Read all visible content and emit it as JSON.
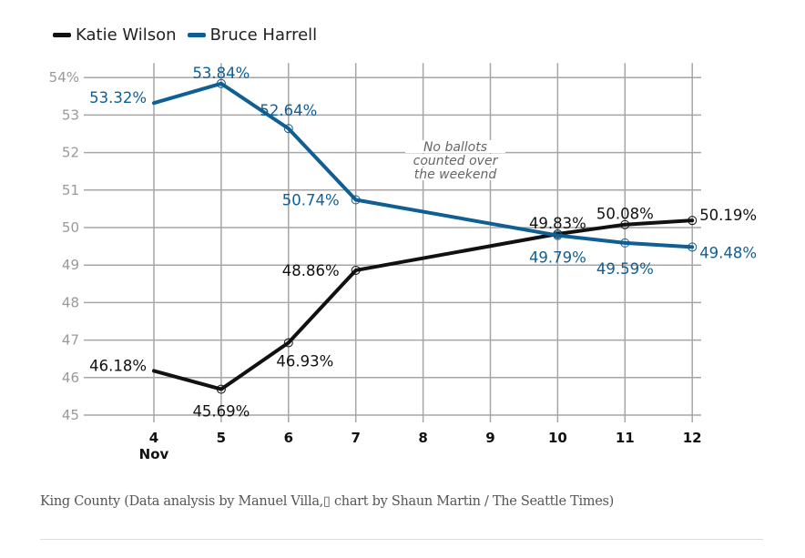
{
  "chart_data": {
    "type": "line",
    "title": "",
    "xlabel": "",
    "ylabel": "",
    "x": [
      4,
      5,
      6,
      7,
      8,
      9,
      10,
      11,
      12
    ],
    "x_tick_labels": [
      "4",
      "5",
      "6",
      "7",
      "8",
      "9",
      "10",
      "11",
      "12"
    ],
    "x_sublabel": "Nov",
    "ylim": [
      45,
      54
    ],
    "y_ticks": [
      45,
      46,
      47,
      48,
      49,
      50,
      51,
      52,
      53,
      54
    ],
    "y_tick_labels": [
      "45",
      "46",
      "47",
      "48",
      "49",
      "50",
      "51",
      "52",
      "53",
      "54%"
    ],
    "grid": true,
    "legend_position": "top-left",
    "series": [
      {
        "name": "Katie Wilson",
        "color": "#111111",
        "points": [
          [
            4,
            46.18
          ],
          [
            5,
            45.69
          ],
          [
            6,
            46.93
          ],
          [
            7,
            48.86
          ],
          [
            10,
            49.83
          ],
          [
            11,
            50.08
          ],
          [
            12,
            50.19
          ]
        ],
        "labels": [
          "46.18%",
          "45.69%",
          "46.93%",
          "48.86%",
          "49.83%",
          "50.08%",
          "50.19%"
        ]
      },
      {
        "name": "Bruce Harrell",
        "color": "#0f5e94",
        "points": [
          [
            4,
            53.32
          ],
          [
            5,
            53.84
          ],
          [
            6,
            52.64
          ],
          [
            7,
            50.74
          ],
          [
            10,
            49.79
          ],
          [
            11,
            49.59
          ],
          [
            12,
            49.48
          ]
        ],
        "labels": [
          "53.32%",
          "53.84%",
          "52.64%",
          "50.74%",
          "49.79%",
          "49.59%",
          "49.48%"
        ]
      }
    ],
    "annotation": [
      "No ballots",
      "counted over",
      "the weekend"
    ]
  },
  "caption": "King County (Data analysis by Manuel Villa,▯ chart by Shaun Martin / The Seattle Times)"
}
